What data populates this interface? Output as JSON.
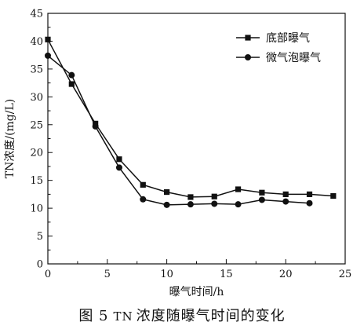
{
  "chart_data": {
    "type": "line",
    "xlabel": "曝气时间/h",
    "ylabel": "TN浓度/(mg/L)",
    "xlim": [
      0,
      25
    ],
    "ylim": [
      0,
      45
    ],
    "xticks": [
      0,
      5,
      10,
      15,
      20,
      25
    ],
    "yticks": [
      0,
      5,
      10,
      15,
      20,
      25,
      30,
      35,
      40,
      45
    ],
    "grid": false,
    "legend_position": "top-right",
    "series": [
      {
        "name": "底部曝气",
        "marker": "square",
        "x": [
          0,
          2,
          4,
          6,
          8,
          10,
          12,
          14,
          16,
          18,
          20,
          22,
          24
        ],
        "y": [
          40.3,
          32.3,
          25.2,
          18.8,
          14.2,
          12.9,
          12.0,
          12.1,
          13.4,
          12.8,
          12.5,
          12.5,
          12.2
        ]
      },
      {
        "name": "微气泡曝气",
        "marker": "circle",
        "x": [
          0,
          2,
          4,
          6,
          8,
          10,
          12,
          14,
          16,
          18,
          20,
          22
        ],
        "y": [
          37.4,
          33.9,
          24.7,
          17.3,
          11.6,
          10.6,
          10.7,
          10.8,
          10.7,
          11.5,
          11.2,
          10.9
        ]
      }
    ]
  },
  "caption": {
    "prefix": "图 5",
    "tn": "TN",
    "text": "浓度随曝气时间的变化"
  },
  "colors": {
    "line": "#111111",
    "background": "#ffffff"
  }
}
